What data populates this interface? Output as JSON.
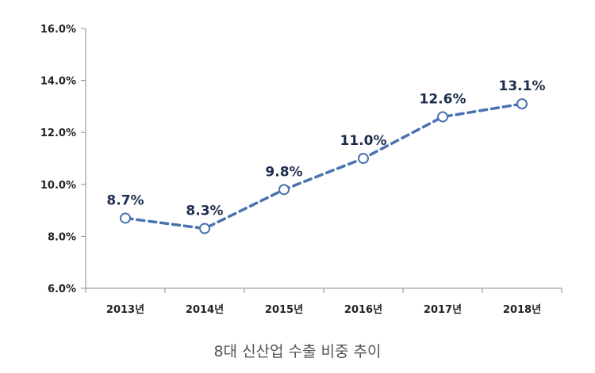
{
  "chart_data": {
    "type": "line",
    "title": "8대 신산업 수출 비중 추이",
    "categories": [
      "2013년",
      "2014년",
      "2015년",
      "2016년",
      "2017년",
      "2018년"
    ],
    "values": [
      8.7,
      8.3,
      9.8,
      11.0,
      12.6,
      13.1
    ],
    "data_labels": [
      "8.7%",
      "8.3%",
      "9.8%",
      "11.0%",
      "12.6%",
      "13.1%"
    ],
    "yticks": [
      6.0,
      8.0,
      10.0,
      12.0,
      14.0,
      16.0
    ],
    "ytick_labels": [
      "6.0%",
      "8.0%",
      "10.0%",
      "12.0%",
      "14.0%",
      "16.0%"
    ],
    "ylim": [
      6.0,
      16.0
    ],
    "xlabel": "",
    "ylabel": "",
    "grid": false,
    "line_color": "#4a72b0",
    "line_style": "dashed",
    "marker": "hollow-circle"
  }
}
